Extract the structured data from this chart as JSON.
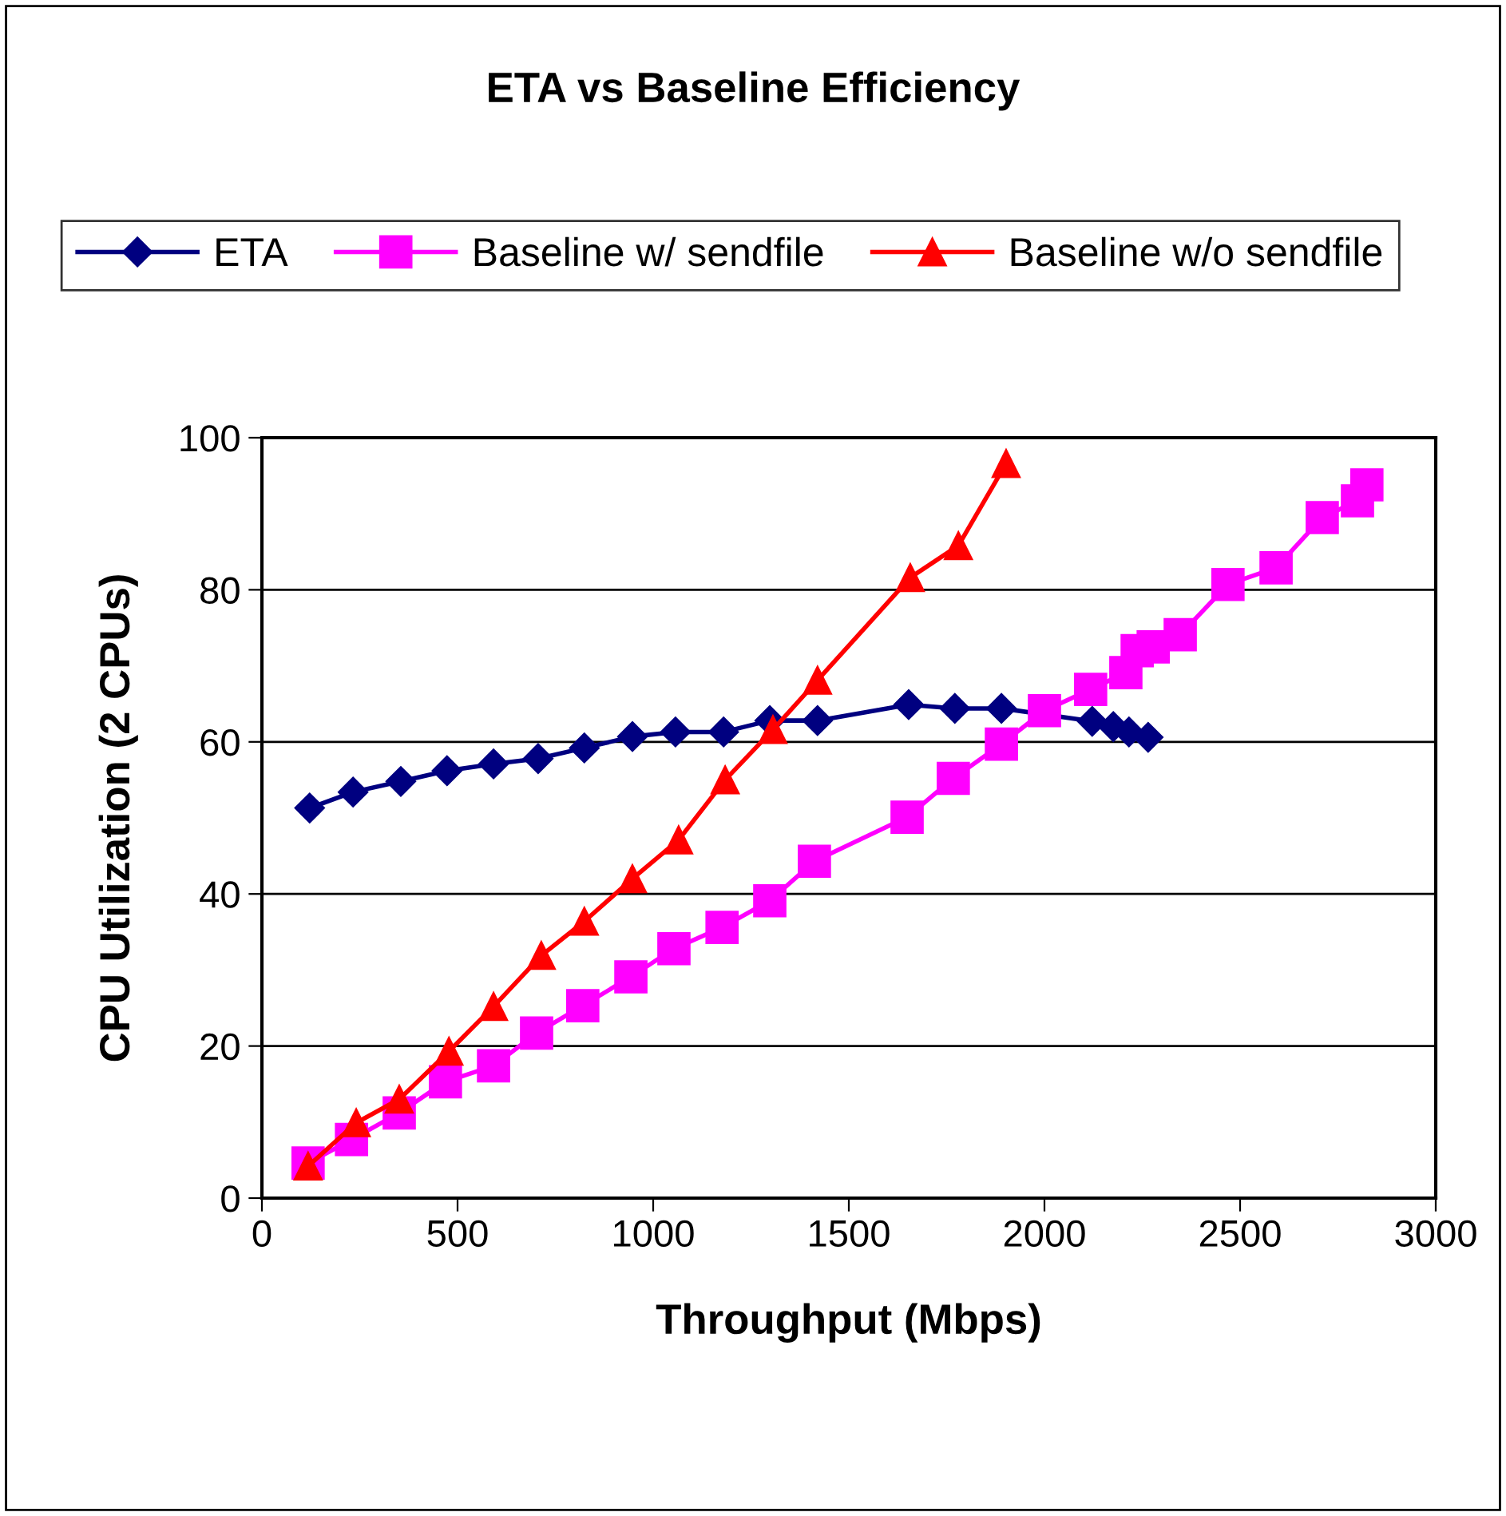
{
  "chart_data": {
    "type": "line",
    "title": "ETA vs Baseline Efficiency",
    "xlabel": "Throughput (Mbps)",
    "ylabel": "CPU Utilization (2 CPUs)",
    "xlim": [
      0,
      3000
    ],
    "xticks": [
      0,
      500,
      1000,
      1500,
      2000,
      2500,
      3000
    ],
    "ylim": [
      0,
      100
    ],
    "yticks": [
      0,
      20,
      40,
      60,
      80,
      100
    ],
    "grid": "y",
    "legend": "top",
    "series": [
      {
        "name": "ETA",
        "color": "#000080",
        "marker": "diamond",
        "x": [
          122,
          233,
          355,
          473,
          592,
          706,
          824,
          947,
          1057,
          1180,
          1298,
          1420,
          1653,
          1771,
          1890,
          2122,
          2176,
          2216,
          2265
        ],
        "values": [
          51.3,
          53.4,
          54.8,
          56.2,
          57.1,
          57.8,
          59.2,
          60.7,
          61.3,
          61.3,
          62.8,
          62.8,
          64.9,
          64.4,
          64.4,
          62.7,
          62.0,
          61.3,
          60.6
        ]
      },
      {
        "name": "Baseline w/ sendfile",
        "color": "#ff00ff",
        "marker": "square",
        "x": [
          118,
          229,
          351,
          469,
          592,
          702,
          820,
          943,
          1053,
          1176,
          1298,
          1412,
          1649,
          1767,
          1890,
          2000,
          2118,
          2208,
          2237,
          2278,
          2347,
          2469,
          2592,
          2710,
          2800,
          2824
        ],
        "values": [
          4.6,
          7.7,
          11.2,
          15.3,
          17.4,
          21.7,
          25.3,
          29.1,
          32.8,
          35.6,
          39.1,
          44.3,
          50.1,
          55.2,
          59.7,
          64.1,
          66.9,
          69.1,
          72.0,
          72.5,
          74.1,
          80.7,
          82.9,
          89.5,
          91.7,
          93.8
        ]
      },
      {
        "name": "Baseline w/o sendfile",
        "color": "#ff0000",
        "marker": "triangle",
        "x": [
          118,
          241,
          351,
          478,
          592,
          714,
          824,
          947,
          1065,
          1184,
          1306,
          1420,
          1657,
          1780,
          1902
        ],
        "values": [
          4.2,
          9.9,
          13.0,
          19.3,
          25.2,
          31.9,
          36.4,
          42.0,
          47.1,
          55.0,
          61.6,
          68.1,
          81.6,
          85.8,
          96.6
        ]
      }
    ]
  }
}
